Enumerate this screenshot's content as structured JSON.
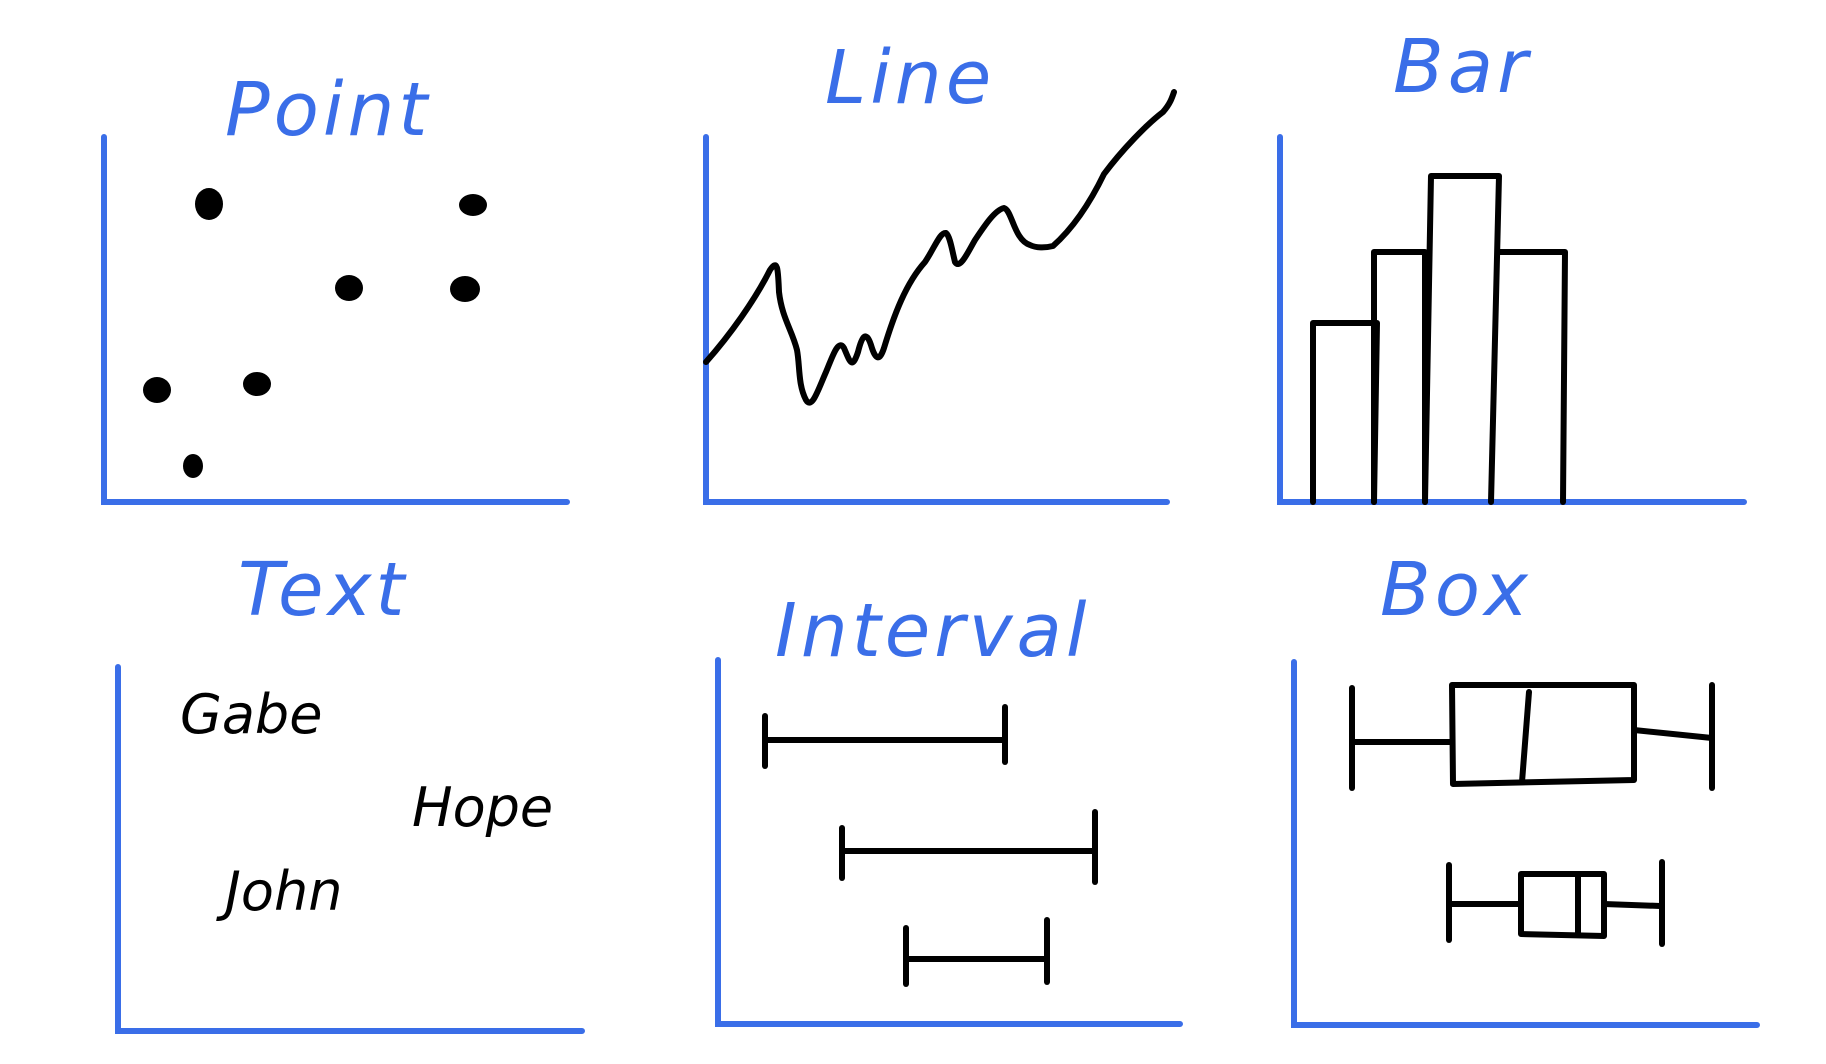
{
  "panels": [
    {
      "key": "point",
      "title": "Point"
    },
    {
      "key": "line",
      "title": "Line"
    },
    {
      "key": "bar",
      "title": "Bar"
    },
    {
      "key": "text",
      "title": "Text"
    },
    {
      "key": "interval",
      "title": "Interval"
    },
    {
      "key": "box",
      "title": "Box"
    }
  ],
  "text_labels": [
    "Gabe",
    "Hope",
    "John"
  ],
  "colors": {
    "accent": "#3a6ee8",
    "ink": "#000000",
    "background": "#ffffff"
  }
}
